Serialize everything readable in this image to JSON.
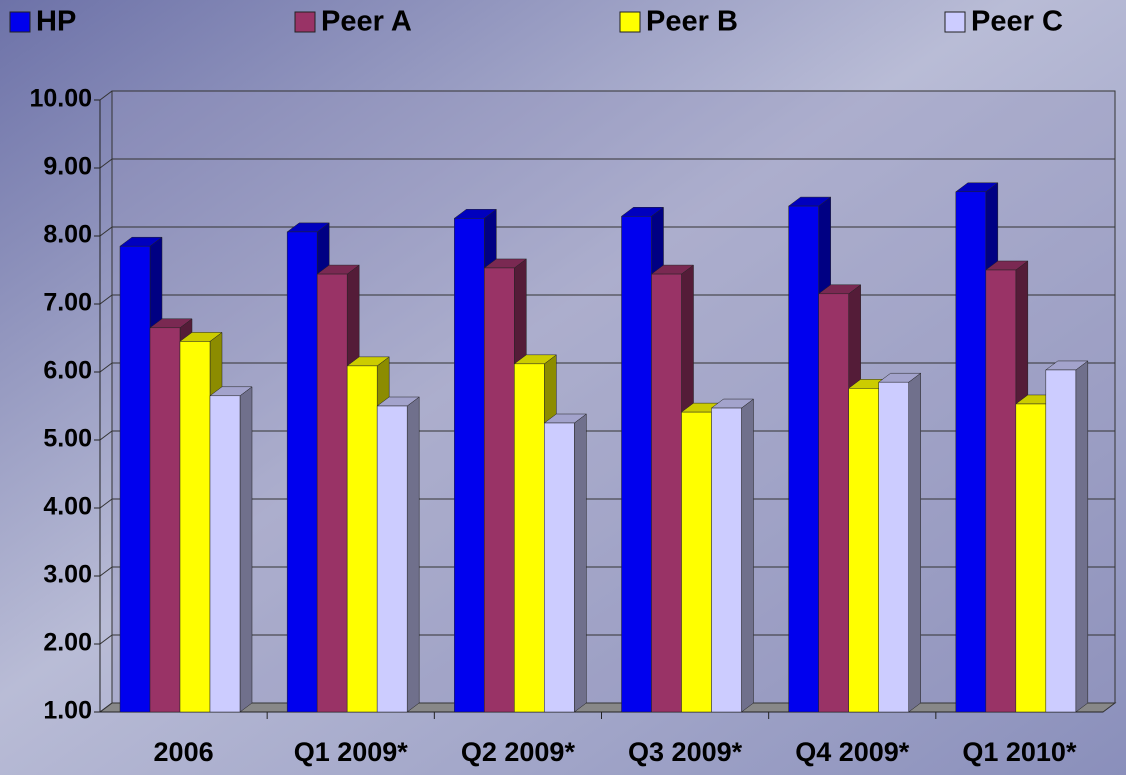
{
  "chart_data": {
    "type": "bar3d",
    "categories": [
      "2006",
      "Q1 2009*",
      "Q2 2009*",
      "Q3 2009*",
      "Q4 2009*",
      "Q1 2010*"
    ],
    "series": [
      {
        "name": "HP",
        "color": "#0000ee",
        "values": [
          7.85,
          8.06,
          8.26,
          8.29,
          8.44,
          8.65
        ]
      },
      {
        "name": "Peer A",
        "color": "#993366",
        "values": [
          6.65,
          7.44,
          7.53,
          7.44,
          7.15,
          7.5
        ]
      },
      {
        "name": "Peer B",
        "color": "#ffff00",
        "values": [
          6.45,
          6.09,
          6.12,
          5.41,
          5.76,
          5.53
        ]
      },
      {
        "name": "Peer C",
        "color": "#ccccff",
        "values": [
          5.65,
          5.5,
          5.25,
          5.47,
          5.85,
          6.03
        ]
      }
    ],
    "ylim": [
      1,
      10
    ],
    "yticks": [
      {
        "value": 1,
        "label": "1.00"
      },
      {
        "value": 2,
        "label": "2.00"
      },
      {
        "value": 3,
        "label": "3.00"
      },
      {
        "value": 4,
        "label": "4.00"
      },
      {
        "value": 5,
        "label": "5.00"
      },
      {
        "value": 6,
        "label": "6.00"
      },
      {
        "value": 7,
        "label": "7.00"
      },
      {
        "value": 8,
        "label": "8.00"
      },
      {
        "value": 9,
        "label": "9.00"
      },
      {
        "value": 10,
        "label": "10.00"
      }
    ],
    "grid": true,
    "legend": "top"
  }
}
